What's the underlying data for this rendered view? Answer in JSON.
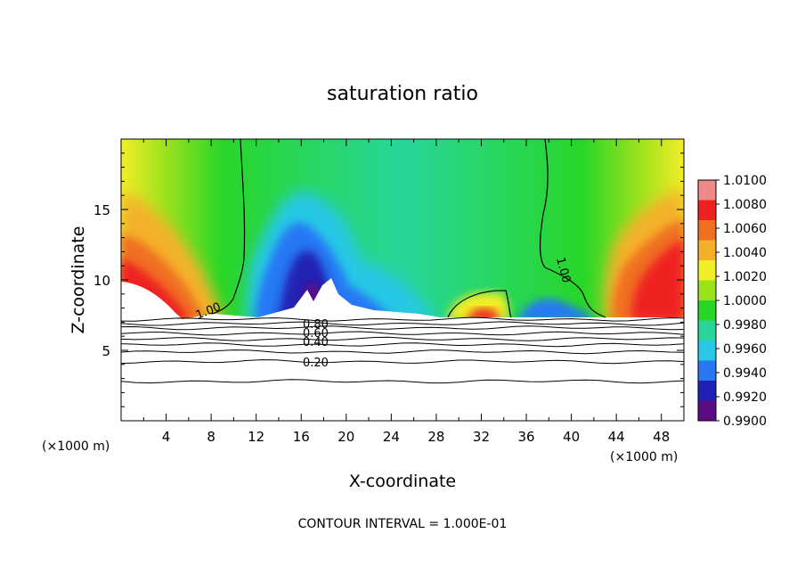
{
  "chart_data": {
    "type": "contour",
    "title": "saturation ratio",
    "xlabel": "X-coordinate",
    "ylabel": "Z-coordinate",
    "x_unit_left": "(×1000 m)",
    "x_unit_right": "(×1000 m)",
    "xlim": [
      0,
      50
    ],
    "ylim": [
      0,
      20
    ],
    "x_ticks": [
      "4",
      "8",
      "12",
      "16",
      "20",
      "24",
      "28",
      "32",
      "36",
      "40",
      "44",
      "48"
    ],
    "y_ticks": [
      "5",
      "10",
      "15"
    ],
    "footer": "CONTOUR INTERVAL = 1.000E-01",
    "colorbar": {
      "levels": [
        "1.0100",
        "1.0080",
        "1.0060",
        "1.0040",
        "1.0020",
        "1.0000",
        "0.9980",
        "0.9960",
        "0.9940",
        "0.9920",
        "0.9900"
      ],
      "colors": [
        "#f08a8a",
        "#ef2020",
        "#f07020",
        "#f4b02a",
        "#f2ee28",
        "#9ae21c",
        "#28d628",
        "#28d69c",
        "#28c8e6",
        "#2878f4",
        "#2020b4",
        "#5c0c82"
      ]
    },
    "contour_labels": [
      "1.00",
      "1.00",
      "0.80",
      "0.60",
      "0.40",
      "0.20"
    ],
    "line_levels_z": [
      2.8,
      4.2,
      4.9,
      5.4,
      5.8,
      6.2,
      6.6,
      6.9,
      7.2
    ]
  }
}
